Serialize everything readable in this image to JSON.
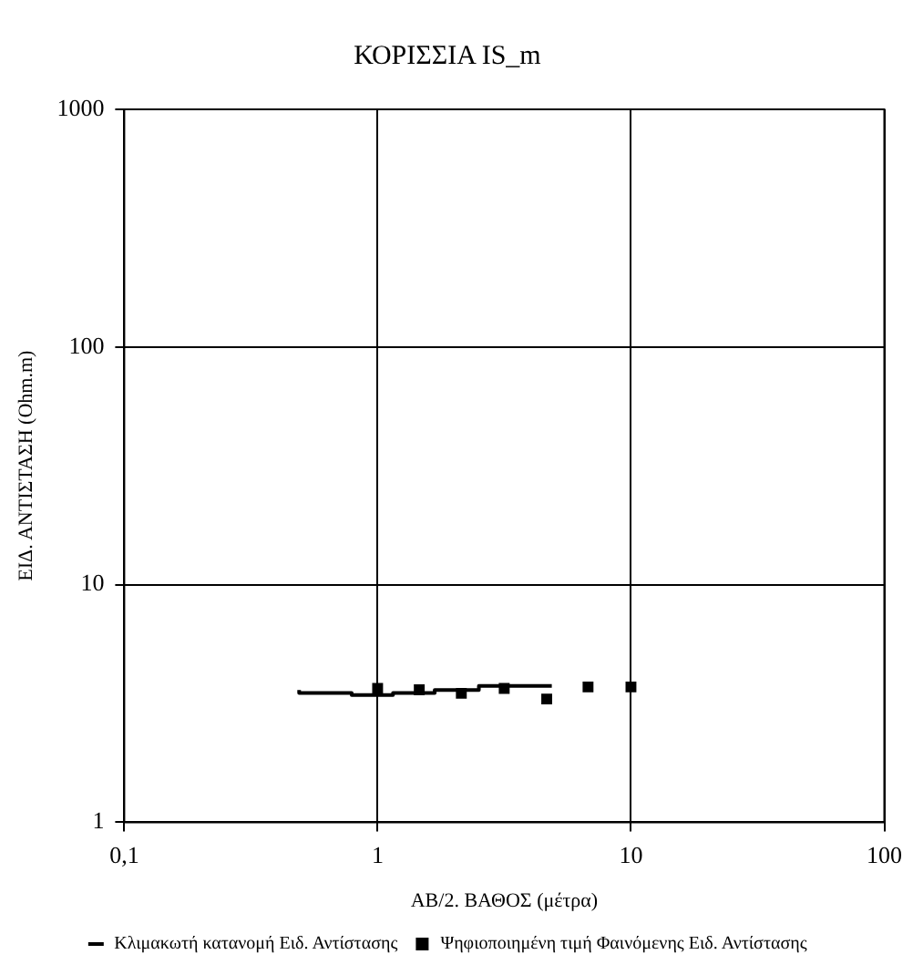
{
  "chart_data": {
    "type": "scatter",
    "title": "ΚΟΡΙΣΣΙΑ IS_m",
    "xlabel": "ΑΒ/2. ΒΑΘΟΣ (μέτρα)",
    "ylabel": "ΕΙΔ. ΑΝΤΙΣΤΑΣΗ (Ohm.m)",
    "log": "xy",
    "grid": true,
    "legend": "bottom",
    "xlim": [
      0.1,
      100
    ],
    "xticks": [
      {
        "value": 0.1,
        "label": "0,1"
      },
      1,
      10,
      100
    ],
    "ylim": [
      1,
      1000
    ],
    "yticks": [
      1,
      10,
      100,
      1000
    ],
    "series": [
      {
        "name": "Κλιμακωτή κατανομή Ειδ. Αντίστασης",
        "type": "step",
        "marker": "none",
        "color": "#000000",
        "x": [
          0.49,
          0.79,
          1.15,
          1.68,
          2.51,
          3.65,
          4.87
        ],
        "values": [
          3.6,
          3.5,
          3.43,
          3.5,
          3.6,
          3.75,
          3.75
        ]
      },
      {
        "name": "Ψηφιοποιημένη τιμή Φαινόμενης Ειδ. Αντίστασης",
        "marker": "square",
        "color": "#000000",
        "x": [
          1,
          1.46,
          2.14,
          3.16,
          4.65,
          6.77,
          10
        ],
        "values": [
          3.66,
          3.61,
          3.49,
          3.66,
          3.3,
          3.71,
          3.71
        ]
      }
    ]
  }
}
